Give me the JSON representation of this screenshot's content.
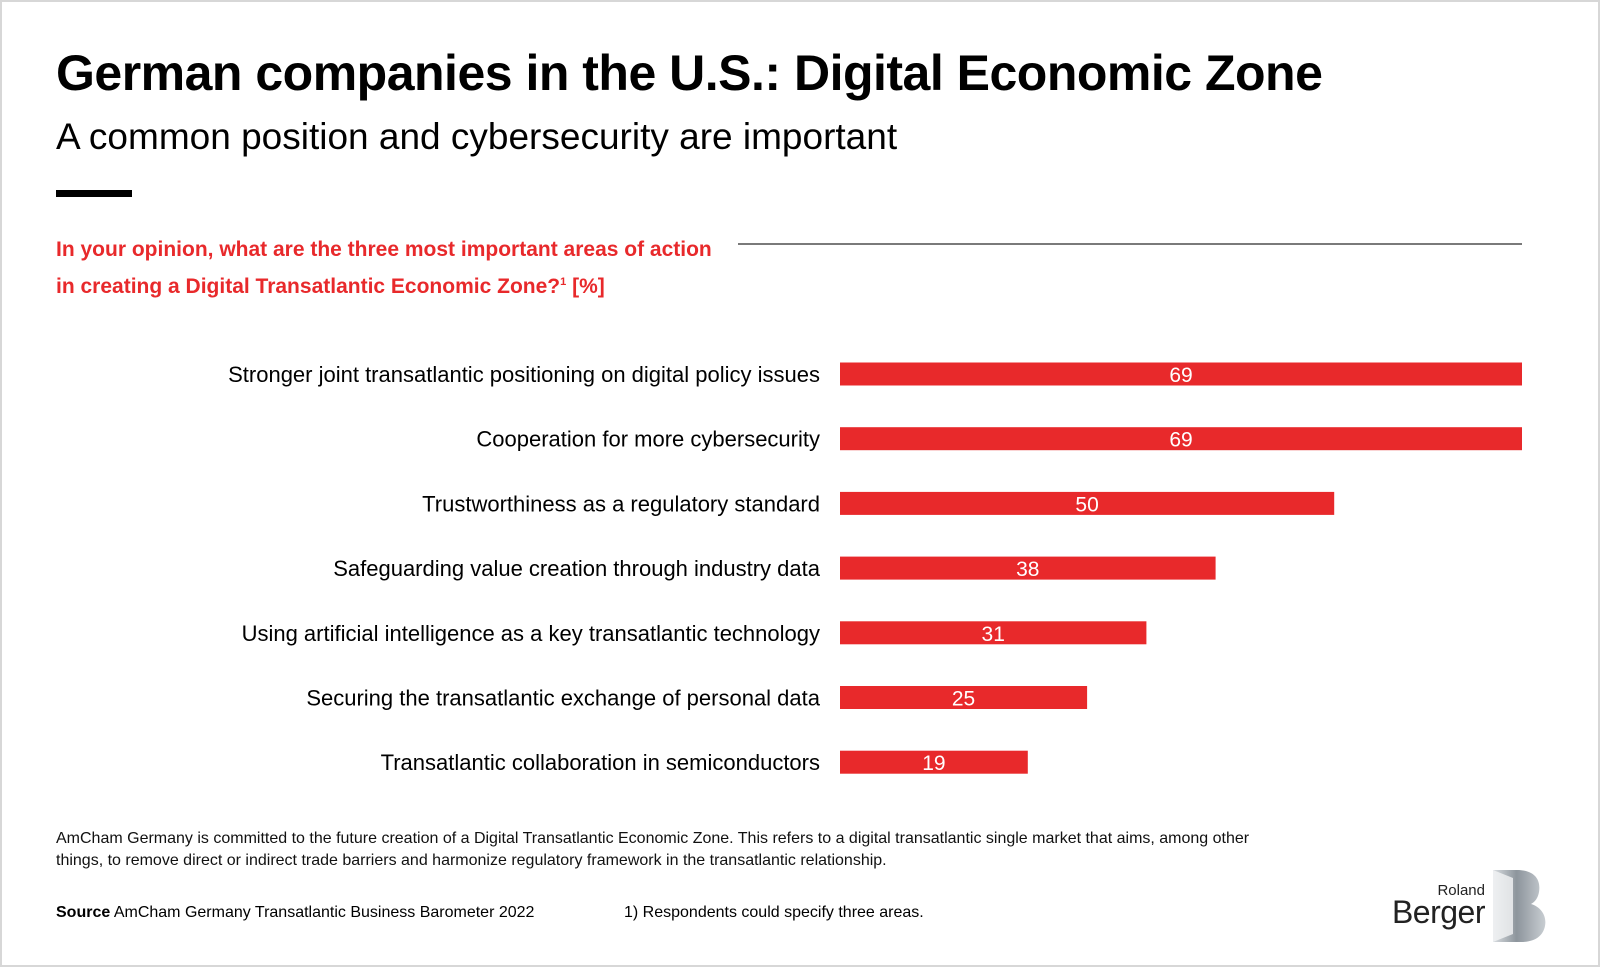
{
  "colors": {
    "accent": "#e8292b",
    "bar": "#e8292b",
    "text": "#000000"
  },
  "header": {
    "title": "German companies in the U.S.: Digital Economic Zone",
    "subtitle": "A common position and cybersecurity are important"
  },
  "question": {
    "text": "In your opinion, what are the three most important areas of action in creating a Digital Transatlantic Economic Zone?",
    "footnote_marker": "1",
    "unit": "[%]"
  },
  "chart_data": {
    "type": "bar",
    "orientation": "horizontal",
    "categories": [
      "Stronger joint transatlantic positioning on digital policy issues",
      "Cooperation for more cybersecurity",
      "Trustworthiness as a regulatory standard",
      "Safeguarding value creation through industry data",
      "Using artificial intelligence as a key transatlantic technology",
      "Securing the transatlantic exchange of personal data",
      "Transatlantic collaboration in semiconductors"
    ],
    "values": [
      69,
      69,
      50,
      38,
      31,
      25,
      19
    ],
    "xlim": [
      0,
      69
    ],
    "grid": false,
    "legend": "none",
    "data_labels": true
  },
  "footer": {
    "note": "AmCham Germany is committed to the future creation of a Digital Transatlantic Economic Zone. This refers to a digital transatlantic single market that aims, among other things, to remove direct or indirect trade barriers and harmonize regulatory framework in the transatlantic relationship.",
    "source_label": "Source",
    "source_text": "AmCham Germany Transatlantic Business Barometer 2022",
    "footnote": "1) Respondents could specify three areas."
  },
  "logo": {
    "line1": "Roland",
    "line2": "Berger"
  }
}
